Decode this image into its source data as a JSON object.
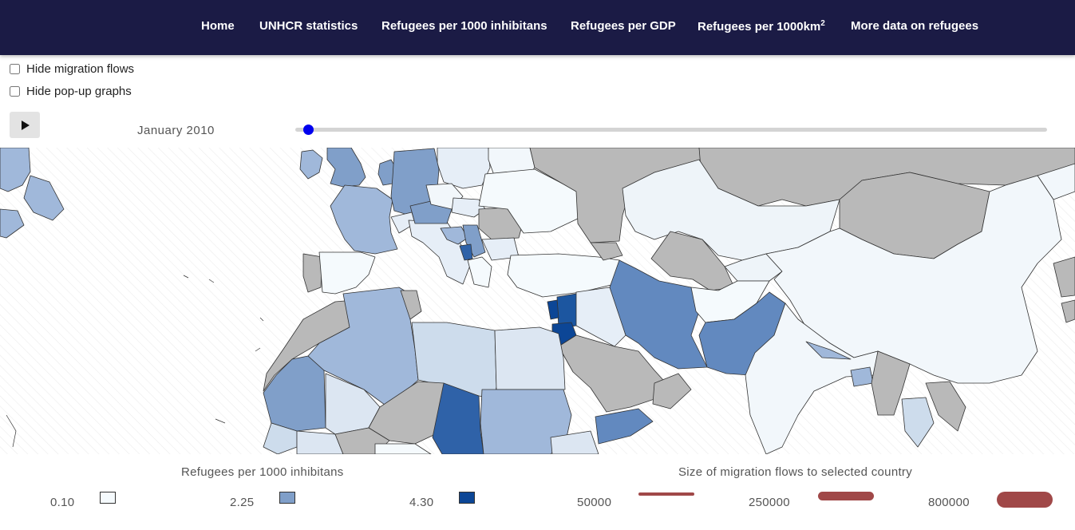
{
  "nav": {
    "home": "Home",
    "unhcr": "UNHCR statistics",
    "per1000": "Refugees per 1000 inhibitans",
    "gdp": "Refugees per GDP",
    "per_km_base": "Refugees per 1000km",
    "per_km_sup": "2",
    "more": "More data on refugees"
  },
  "options": {
    "hide_flows": "Hide migration flows",
    "hide_graphs": "Hide pop-up graphs"
  },
  "timeline": {
    "date": "January 2010",
    "position_fraction": 0.0
  },
  "legend": {
    "color_title": "Refugees per 1000 inhibitans",
    "color_stops": [
      {
        "value": "0.10",
        "color": "#f5fafd"
      },
      {
        "value": "2.25",
        "color": "#809fc9"
      },
      {
        "value": "4.30",
        "color": "#0c4696"
      }
    ],
    "flow_title": "Size of migration flows to selected country",
    "flow_stops": [
      {
        "value": "50000"
      },
      {
        "value": "250000"
      },
      {
        "value": "800000"
      }
    ],
    "flow_color": "#a04848"
  },
  "map_colors": {
    "no_data": "#b9b9b9",
    "ocean_hatch": "#ececec",
    "border": "#333333"
  }
}
